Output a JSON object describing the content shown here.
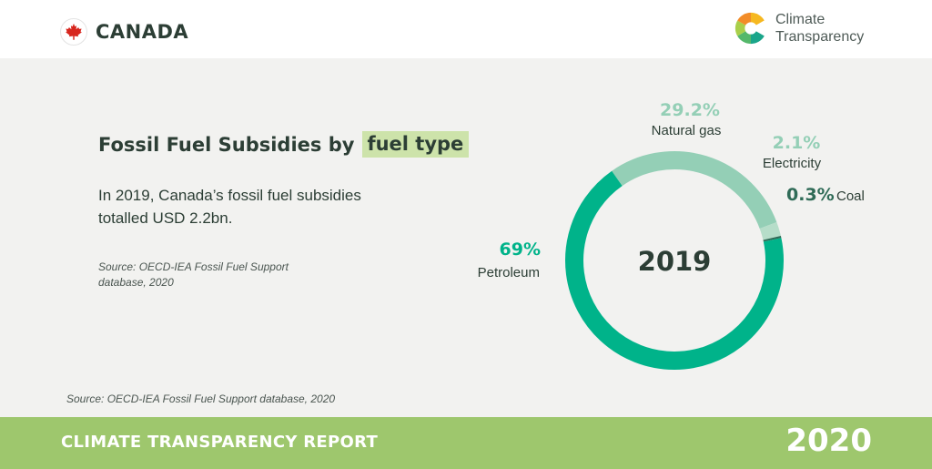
{
  "header": {
    "country": "CANADA",
    "brand_line1": "Climate",
    "brand_line2": "Transparency"
  },
  "panel": {
    "title_main": "Fossil Fuel Subsidies by",
    "title_highlight": "fuel type",
    "summary": "In 2019, Canada’s fossil fuel subsidies totalled USD 2.2bn.",
    "source_inner": "Source: OECD-IEA Fossil Fuel Support database, 2020",
    "source_bottom": "Source: OECD-IEA Fossil Fuel Support database, 2020"
  },
  "footer": {
    "title": "CLIMATE TRANSPARENCY REPORT",
    "year": "2020"
  },
  "colors": {
    "petroleum": "#00b38a",
    "natural_gas": "#94cfb6",
    "electricity": "#b6ddc9",
    "coal": "#2f6b57",
    "highlight": "#cde3aa",
    "footer": "#9ec76d"
  },
  "chart_data": {
    "type": "pie",
    "title": "2019",
    "categories": [
      "Petroleum",
      "Natural gas",
      "Electricity",
      "Coal"
    ],
    "values": [
      69,
      29.2,
      2.1,
      0.3
    ],
    "value_labels": [
      "69%",
      "29.2%",
      "2.1%",
      "0.3%"
    ],
    "unit": "%",
    "center_label": "2019"
  }
}
